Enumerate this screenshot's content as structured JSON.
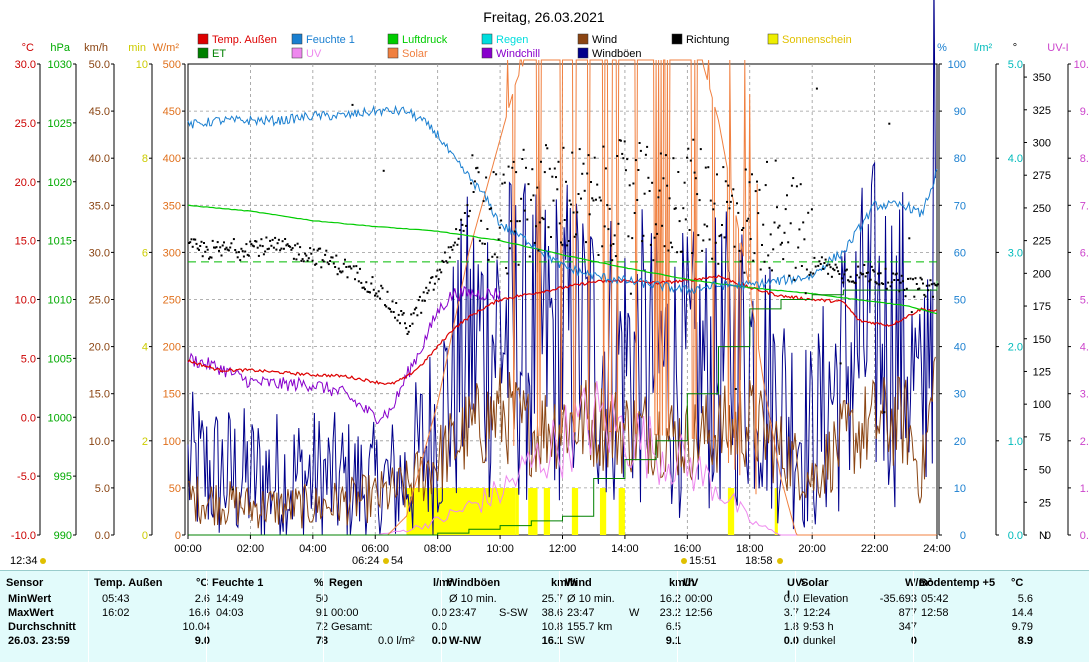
{
  "chart_data": {
    "type": "line",
    "title": "Freitag, 26.03.2021",
    "x_ticks": [
      "00:00",
      "02:00",
      "04:00",
      "06:00",
      "08:00",
      "10:00",
      "12:00",
      "14:00",
      "16:00",
      "18:00",
      "20:00",
      "22:00",
      "24:00"
    ],
    "left_axes": [
      {
        "unit": "°C",
        "color": "#cc0000",
        "ticks": [
          "30.0",
          "25.0",
          "20.0",
          "15.0",
          "10.0",
          "5.0",
          "0.0",
          "-5.0",
          "-10.0"
        ],
        "range": [
          -10,
          30
        ]
      },
      {
        "unit": "hPa",
        "color": "#00aa00",
        "ticks": [
          "1030",
          "1025",
          "1020",
          "1015",
          "1010",
          "1005",
          "1000",
          "995",
          "990"
        ],
        "range": [
          990,
          1030
        ]
      },
      {
        "unit": "km/h",
        "color": "#8b4513",
        "ticks": [
          "50.0",
          "45.0",
          "40.0",
          "35.0",
          "30.0",
          "25.0",
          "20.0",
          "15.0",
          "10.0",
          "5.0",
          "0.0"
        ],
        "range": [
          0,
          50
        ]
      },
      {
        "unit": "min",
        "color": "#cccc00",
        "ticks": [
          "10",
          "8",
          "6",
          "4",
          "2",
          "0"
        ],
        "range": [
          0,
          10
        ]
      },
      {
        "unit": "W/m²",
        "color": "#e0701c",
        "ticks": [
          "500",
          "450",
          "400",
          "350",
          "300",
          "250",
          "200",
          "150",
          "100",
          "50",
          "0"
        ],
        "range": [
          0,
          500
        ]
      }
    ],
    "right_axes": [
      {
        "unit": "%",
        "color": "#1a7fd0",
        "ticks": [
          "100",
          "90",
          "80",
          "70",
          "60",
          "50",
          "40",
          "30",
          "20",
          "10",
          "0"
        ],
        "range": [
          0,
          100
        ]
      },
      {
        "unit": "l/m²",
        "color": "#00bbbb",
        "ticks": [
          "5.0",
          "4.0",
          "3.0",
          "2.0",
          "1.0",
          "0.0"
        ],
        "range": [
          0,
          5
        ]
      },
      {
        "unit": "°",
        "color": "#000000",
        "ticks": [
          "350",
          "325",
          "300",
          "275",
          "250",
          "225",
          "200",
          "175",
          "150",
          "125",
          "100",
          "75",
          "50",
          "25",
          "0"
        ],
        "range": [
          0,
          360
        ],
        "n_label": "N"
      },
      {
        "unit": "UV-I",
        "color": "#cc44cc",
        "ticks": [
          "10.0",
          "9.0",
          "8.0",
          "7.0",
          "6.0",
          "5.0",
          "4.0",
          "3.0",
          "2.0",
          "1.0",
          "0.0"
        ],
        "range": [
          0,
          10
        ]
      }
    ],
    "legend": [
      {
        "name": "Temp. Außen",
        "color": "#dd0000"
      },
      {
        "name": "ET",
        "color": "#008000"
      },
      {
        "name": "Feuchte 1",
        "color": "#1a7fd0"
      },
      {
        "name": "UV",
        "color": "#ee88ee"
      },
      {
        "name": "Luftdruck",
        "color": "#00cc00"
      },
      {
        "name": "Solar",
        "color": "#f08040"
      },
      {
        "name": "Regen",
        "color": "#00dddd"
      },
      {
        "name": "Windchill",
        "color": "#8800cc"
      },
      {
        "name": "Wind",
        "color": "#8b4513"
      },
      {
        "name": "Windböen",
        "color": "#00008b"
      },
      {
        "name": "Richtung",
        "color": "#000000"
      },
      {
        "name": "Sonnenschein",
        "color": "#eeee00"
      }
    ],
    "annotations": {
      "left_time": "12:34",
      "sunrise": "06:24",
      "sunrise_min": "54",
      "noon": "15:51",
      "sunset": "18:58"
    },
    "series": [
      {
        "name": "Temp. Außen",
        "hours": [
          0,
          1,
          2,
          3,
          4,
          5,
          6,
          6.5,
          7,
          7.5,
          8,
          8.5,
          9,
          9.5,
          10,
          11,
          12,
          13,
          14,
          15,
          16,
          17,
          18,
          19,
          20,
          21,
          21.5,
          22,
          22.5,
          23,
          23.5,
          24
        ],
        "values": [
          4.8,
          4.0,
          4.0,
          3.8,
          3.6,
          3.5,
          3.0,
          2.8,
          3.4,
          4.5,
          6.0,
          7.5,
          8.5,
          9.3,
          10.0,
          10.5,
          11.0,
          11.5,
          11.6,
          11.4,
          11.6,
          12.0,
          11.0,
          10.3,
          10.0,
          9.8,
          8.2,
          8.0,
          7.8,
          8.5,
          9.2,
          9.0
        ]
      },
      {
        "name": "Windchill",
        "hours": [
          0,
          1,
          2,
          3,
          4,
          5,
          5.5,
          6,
          6.5,
          7,
          7.5,
          8,
          8.5,
          9,
          9.5,
          10
        ],
        "values": [
          5.0,
          4.2,
          3.0,
          2.8,
          2.8,
          2.0,
          1.0,
          0.0,
          0.5,
          3.5,
          6.0,
          9.0,
          10.5,
          10.5,
          10.5,
          10.5
        ]
      },
      {
        "name": "Luftdruck",
        "hours": [
          0,
          2,
          4,
          6,
          8,
          10,
          12,
          14,
          16,
          18,
          20,
          22,
          23,
          24
        ],
        "values": [
          1018.0,
          1017.5,
          1016.7,
          1016.2,
          1015.8,
          1015.0,
          1013.8,
          1012.7,
          1011.7,
          1011.0,
          1010.5,
          1009.8,
          1009.5,
          1008.8
        ]
      },
      {
        "name": "Feuchte 1",
        "hours": [
          0,
          1,
          2,
          3,
          4,
          5,
          6,
          6.5,
          7,
          7.5,
          8,
          8.5,
          9,
          9.5,
          10,
          11,
          12,
          13,
          14,
          15,
          16,
          17,
          18,
          19,
          20,
          20.5,
          21,
          21.5,
          22,
          23,
          23.5,
          24
        ],
        "values": [
          87,
          88,
          88,
          88,
          89,
          89,
          90,
          90,
          90,
          88,
          85,
          80,
          76,
          72,
          66,
          62,
          57,
          55,
          54,
          53,
          52,
          53,
          53,
          54,
          55,
          58,
          60,
          65,
          70,
          70,
          68,
          77
        ]
      },
      {
        "name": "Solar",
        "hours": [
          0,
          6.4,
          7,
          7.5,
          8,
          8.5,
          9,
          9.5,
          10,
          10.5,
          11,
          12,
          13,
          14,
          15,
          16,
          16.5,
          17,
          17.5,
          18,
          18.5,
          19,
          19.5,
          24
        ],
        "values": [
          0,
          0,
          20,
          80,
          140,
          220,
          300,
          360,
          420,
          480,
          520,
          540,
          560,
          540,
          530,
          520,
          500,
          440,
          350,
          260,
          150,
          60,
          0,
          0
        ]
      },
      {
        "name": "Windböen",
        "hours": [
          0,
          2,
          4,
          6,
          7,
          8,
          9,
          10,
          11,
          12,
          13,
          14,
          15,
          16,
          17,
          18,
          19,
          20,
          21,
          22,
          23,
          23.5,
          24
        ],
        "values": [
          7,
          6,
          6,
          5,
          6,
          12,
          20,
          22,
          20,
          21,
          20,
          19,
          18,
          17,
          18,
          20,
          14,
          10,
          18,
          22,
          20,
          12,
          40
        ]
      },
      {
        "name": "Wind",
        "hours": [
          0,
          2,
          4,
          6,
          7,
          8,
          9,
          10,
          11,
          12,
          13,
          14,
          15,
          16,
          17,
          18,
          19,
          20,
          21,
          22,
          23,
          23.5,
          24
        ],
        "values": [
          4,
          3,
          3,
          4,
          5,
          8,
          11,
          13,
          11,
          12,
          12,
          11,
          11,
          10,
          11,
          12,
          9,
          6,
          10,
          12,
          12,
          6,
          18
        ]
      },
      {
        "name": "Richtung",
        "hours": [
          0,
          1,
          2,
          3,
          4,
          5,
          6,
          7,
          8,
          9,
          10,
          11,
          12,
          13,
          14,
          15,
          16,
          17,
          18,
          19,
          20,
          21,
          22,
          23,
          24
        ],
        "values": [
          220,
          218,
          222,
          220,
          215,
          205,
          190,
          160,
          200,
          250,
          240,
          255,
          260,
          250,
          260,
          250,
          260,
          250,
          240,
          250,
          210,
          200,
          200,
          190,
          190
        ]
      },
      {
        "name": "ET",
        "hours": [
          0,
          6,
          8,
          9,
          10,
          11,
          12,
          13,
          14,
          15,
          16,
          17,
          18,
          19,
          20,
          21,
          22,
          23,
          24
        ],
        "values": [
          0,
          0,
          0.02,
          0.06,
          0.1,
          0.15,
          0.2,
          0.6,
          0.8,
          1.0,
          1.5,
          2.0,
          2.4,
          2.5,
          2.55,
          2.6,
          2.6,
          2.6,
          2.7
        ]
      },
      {
        "name": "UV",
        "hours": [
          0,
          6,
          7,
          8,
          9,
          10,
          11,
          12,
          13,
          14,
          15,
          16,
          17,
          18,
          19,
          24
        ],
        "values": [
          0,
          0,
          0.1,
          0.3,
          0.6,
          0.9,
          1.5,
          2.0,
          2.5,
          2.2,
          1.8,
          1.5,
          1.0,
          0.3,
          0,
          0
        ]
      },
      {
        "name": "Sonnenschein",
        "hours": [
          0,
          6.9,
          7.0,
          10.5,
          10.6,
          10.9,
          11.2,
          11.4,
          11.6,
          12.3,
          12.5,
          13.2,
          13.4,
          13.8,
          14.0,
          17.3,
          17.5,
          18.8,
          18.9,
          24
        ],
        "values": [
          0,
          0,
          1,
          1,
          0,
          1,
          0,
          1,
          0,
          1,
          0,
          1,
          0,
          1,
          0,
          1,
          0,
          1,
          0,
          0
        ]
      }
    ]
  },
  "table": {
    "columns": [
      {
        "header": "Sensor",
        "unit": "",
        "rows": [
          [
            "MinWert",
            "",
            ""
          ],
          [
            "MaxWert",
            "",
            ""
          ],
          [
            "Durchschnitt",
            "",
            ""
          ],
          [
            "26.03. 23:59",
            "",
            ""
          ]
        ]
      },
      {
        "header": "Temp. Außen",
        "unit": "°C",
        "rows": [
          [
            "05:43",
            "",
            "2.6"
          ],
          [
            "16:02",
            "",
            "16.6"
          ],
          [
            "",
            "",
            "10.04"
          ],
          [
            "",
            "",
            "9.0"
          ]
        ]
      },
      {
        "header": "Feuchte 1",
        "unit": "%",
        "rows": [
          [
            "14:49",
            "",
            "50"
          ],
          [
            "04:03",
            "",
            "91"
          ],
          [
            "",
            "",
            "72"
          ],
          [
            "",
            "",
            "78"
          ]
        ]
      },
      {
        "header": "Regen",
        "unit": "l/m²",
        "rows": [
          [
            "",
            "",
            ""
          ],
          [
            "00:00",
            "",
            "0.0"
          ],
          [
            "Gesamt:",
            "",
            "0.0"
          ],
          [
            "",
            "0.0 l/m²",
            "0.0"
          ]
        ]
      },
      {
        "header": "Windböen",
        "unit": "km/h",
        "rows": [
          [
            "Ø 10 min.",
            "",
            "25.7"
          ],
          [
            "23:47",
            "S-SW",
            "38.6"
          ],
          [
            "",
            "",
            "10.8"
          ],
          [
            "W-NW",
            "",
            "16.1"
          ]
        ]
      },
      {
        "header": "Wind",
        "unit": "km/h",
        "rows": [
          [
            "Ø 10 min.",
            "",
            "16.2"
          ],
          [
            "23:47",
            "W",
            "23.2"
          ],
          [
            "155.7 km",
            "",
            "6.5"
          ],
          [
            "SW",
            "",
            "9.1"
          ]
        ]
      },
      {
        "header": "UV",
        "unit": "UV-I",
        "rows": [
          [
            "00:00",
            "",
            "0.0"
          ],
          [
            "12:56",
            "",
            "3.7"
          ],
          [
            "",
            "",
            "1.8"
          ],
          [
            "",
            "",
            "0.0"
          ]
        ]
      },
      {
        "header": "Solar",
        "unit": "W/m²",
        "rows": [
          [
            "Elevation",
            "",
            "-35.693"
          ],
          [
            "12:24",
            "",
            "877"
          ],
          [
            "9:53 h",
            "",
            "347"
          ],
          [
            "dunkel",
            "",
            "0"
          ]
        ]
      },
      {
        "header": "Bodentemp +5",
        "unit": "°C",
        "rows": [
          [
            "05:42",
            "",
            "5.6"
          ],
          [
            "12:58",
            "",
            "14.4"
          ],
          [
            "",
            "",
            "9.79"
          ],
          [
            "",
            "",
            "8.9"
          ]
        ]
      }
    ]
  }
}
